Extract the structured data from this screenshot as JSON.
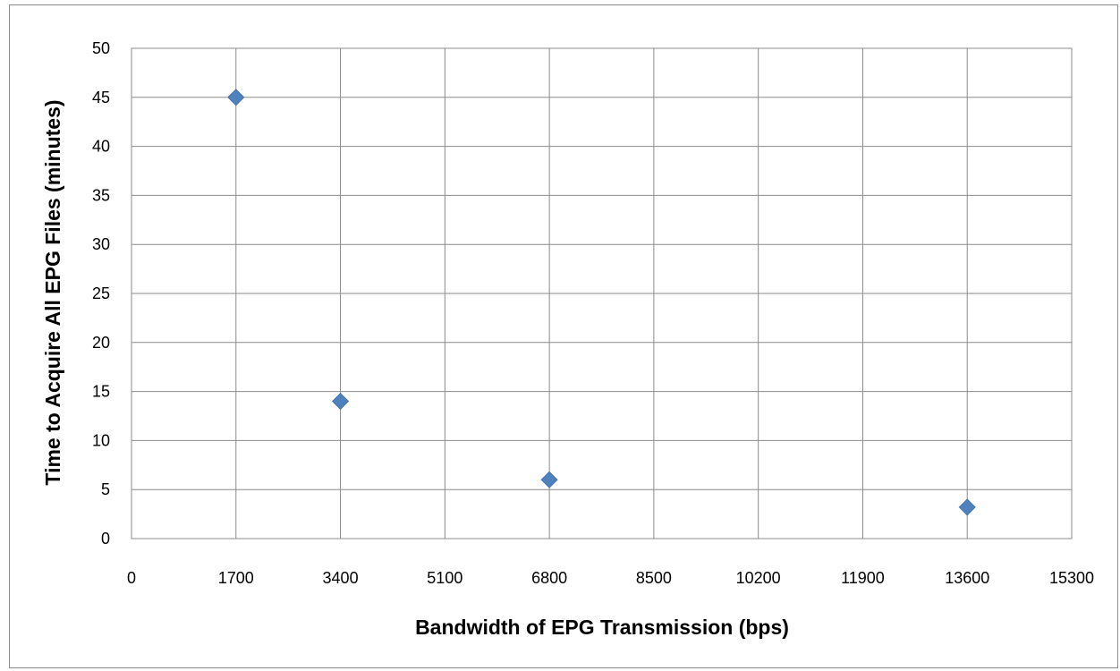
{
  "chart_data": {
    "type": "scatter",
    "xlabel": "Bandwidth of EPG Transmission (bps)",
    "ylabel": "Time to Acquire All EPG Files (minutes)",
    "xlim": [
      0,
      15300
    ],
    "ylim": [
      0,
      50
    ],
    "x_ticks": [
      0,
      1700,
      3400,
      5100,
      6800,
      8500,
      10200,
      11900,
      13600,
      15300
    ],
    "y_ticks": [
      0,
      5,
      10,
      15,
      20,
      25,
      30,
      35,
      40,
      45,
      50
    ],
    "grid": true,
    "legend": "none",
    "marker": "diamond",
    "series": [
      {
        "color": "#4f81bd",
        "points": [
          {
            "x": 1700,
            "y": 45
          },
          {
            "x": 3400,
            "y": 14
          },
          {
            "x": 6800,
            "y": 6
          },
          {
            "x": 13600,
            "y": 3.2
          }
        ]
      }
    ]
  },
  "colors": {
    "grid": "#8c8c8c",
    "marker": "#4f81bd"
  }
}
